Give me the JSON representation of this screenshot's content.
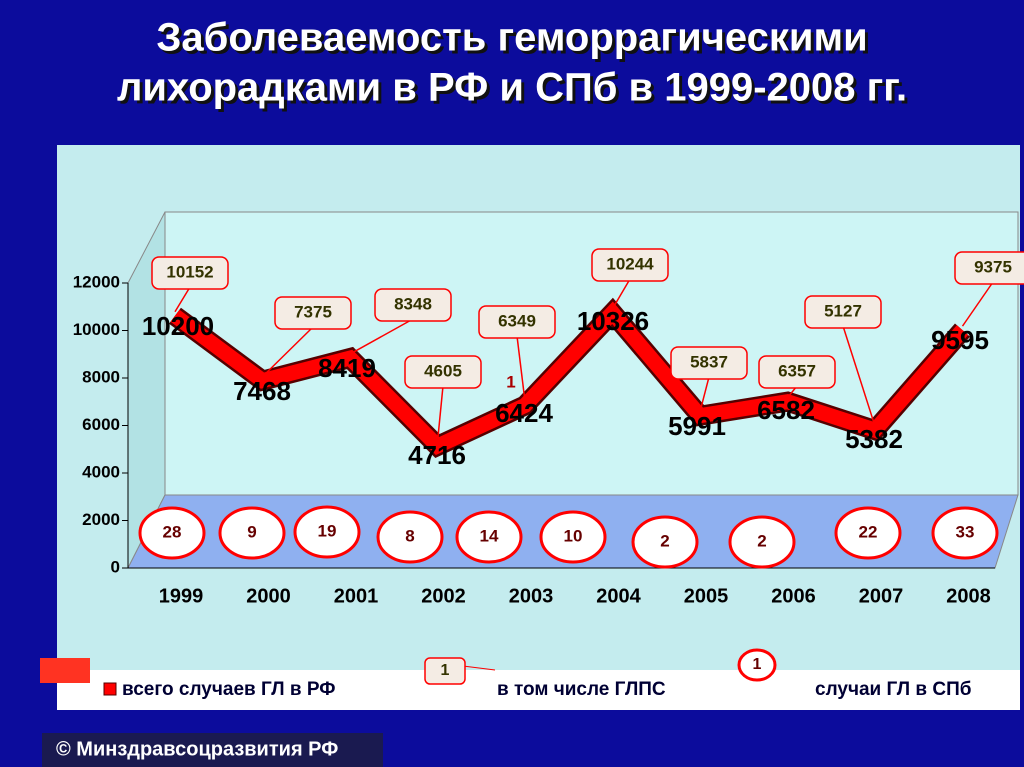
{
  "chart_data": {
    "type": "line3d",
    "title": [
      "Заболеваемость геморрагическими",
      "лихорадками в РФ и СПб в 1999-2008 гг."
    ],
    "categories": [
      "1999",
      "2000",
      "2001",
      "2002",
      "2003",
      "2004",
      "2005",
      "2006",
      "2007",
      "2008"
    ],
    "series": [
      {
        "name": "всего случаев ГЛ в РФ",
        "color": "#ff0000",
        "values": [
          10200,
          7468,
          8419,
          4716,
          6424,
          10326,
          5991,
          6582,
          5382,
          9595
        ]
      },
      {
        "name": "в том числе ГЛПС",
        "color": "#ff0000",
        "values": [
          10152,
          7375,
          8348,
          4605,
          6349,
          10244,
          5837,
          6357,
          5127,
          9375
        ]
      },
      {
        "name": "случаи ГЛ в СПб",
        "color": "#ff0000",
        "values": [
          28,
          9,
          19,
          8,
          14,
          10,
          2,
          2,
          22,
          33
        ]
      }
    ],
    "ylim": [
      0,
      12000
    ],
    "yticks": [
      0,
      2000,
      4000,
      6000,
      8000,
      10000,
      12000
    ],
    "annotation": "1",
    "legend_sample": "1",
    "footer": "© Минздравсоцразвития РФ"
  }
}
